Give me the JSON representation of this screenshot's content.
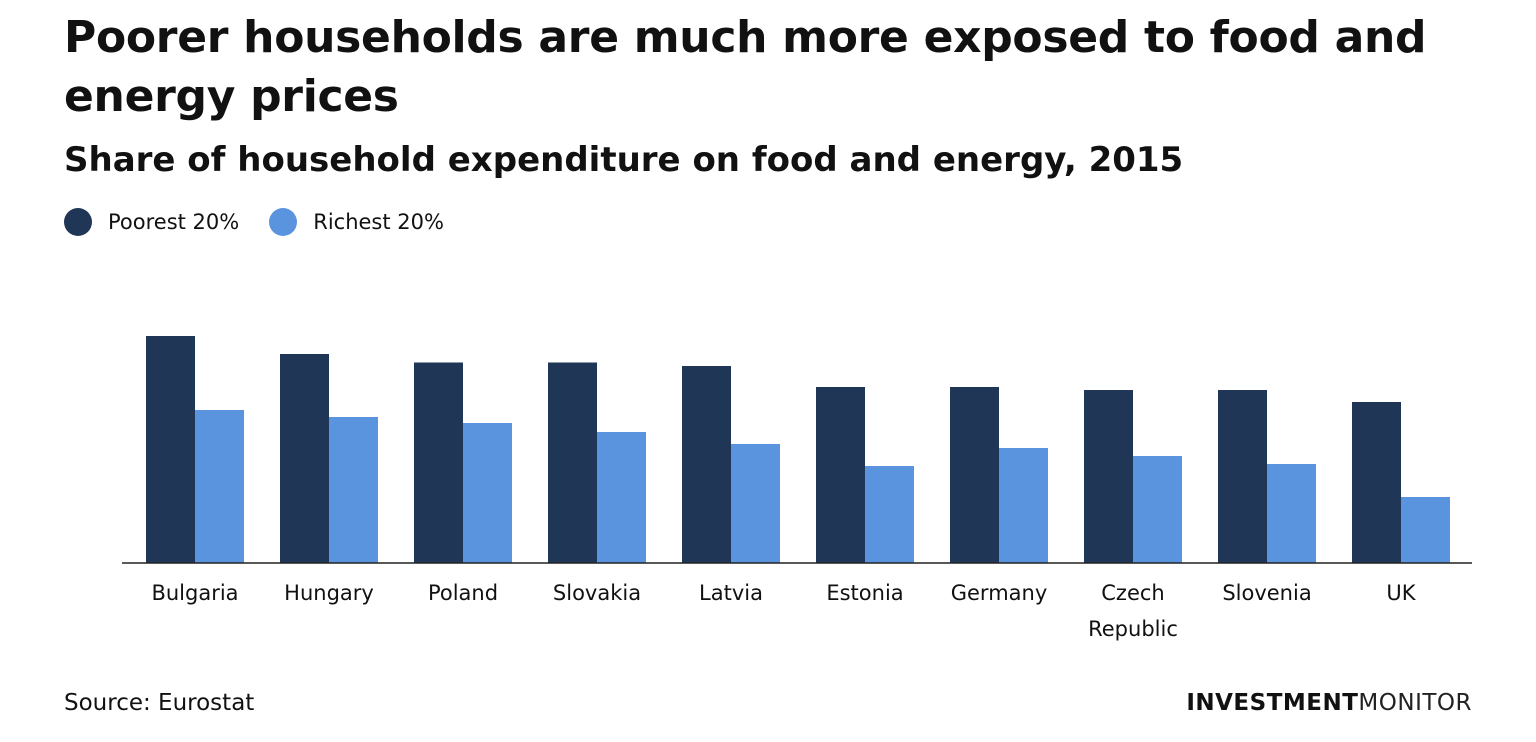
{
  "chart_data": {
    "type": "bar",
    "title": "Poorer households are much more exposed to food and energy prices",
    "subtitle": "Share of household expenditure on food and energy, 2015",
    "categories": [
      "Bulgaria",
      "Hungary",
      "Poland",
      "Slovakia",
      "Latvia",
      "Estonia",
      "Germany",
      "Czech Republic",
      "Slovenia",
      "UK"
    ],
    "series": [
      {
        "name": "Poorest 20%",
        "color": "#1f3657",
        "values": [
          45.4,
          41.8,
          40.1,
          40.1,
          39.4,
          35.2,
          35.2,
          34.6,
          34.6,
          32.2
        ]
      },
      {
        "name": "Richest 20%",
        "color": "#5b94de",
        "values": [
          30.6,
          29.2,
          28.0,
          26.2,
          23.8,
          19.4,
          23.0,
          21.4,
          19.8,
          13.2
        ]
      }
    ],
    "ylim": [
      0,
      50
    ],
    "grid": false,
    "legend_position": "top-left",
    "xlabel": "",
    "ylabel": "",
    "source": "Source: Eurostat"
  },
  "branding": {
    "part1": "INVESTMENT",
    "part2": "MONITOR"
  }
}
